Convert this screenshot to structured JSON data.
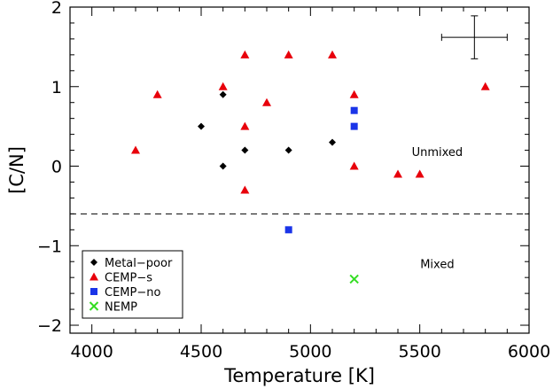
{
  "chart_data": {
    "type": "scatter",
    "xlabel": "Temperature [K]",
    "ylabel": "[C/N]",
    "xlim": [
      3900,
      6000
    ],
    "ylim": [
      -2.1,
      2.0
    ],
    "xticks": [
      4000,
      4500,
      5000,
      5500,
      6000
    ],
    "yticks": [
      -2,
      -1,
      0,
      1,
      2
    ],
    "x_minor_step": 100,
    "y_minor_step": 0.2,
    "grid": false,
    "legend_position": "bottom-left",
    "threshold": {
      "y": -0.6,
      "style": "dashed"
    },
    "annotations": [
      {
        "text": "Unmixed",
        "x": 5580,
        "y": 0.13
      },
      {
        "text": "Mixed",
        "x": 5580,
        "y": -1.28
      }
    ],
    "error_bar": {
      "x": 5750,
      "y": 1.62,
      "dx": 150,
      "dy": 0.27
    },
    "series": [
      {
        "name": "Metal−poor",
        "marker": "diamond",
        "color": "#000000",
        "points": [
          [
            4500,
            0.5
          ],
          [
            4600,
            0.9
          ],
          [
            4600,
            0.0
          ],
          [
            4700,
            0.2
          ],
          [
            4900,
            0.2
          ],
          [
            5100,
            0.3
          ]
        ]
      },
      {
        "name": "CEMP−s",
        "marker": "triangle",
        "color": "#e8000b",
        "points": [
          [
            4200,
            0.2
          ],
          [
            4300,
            0.9
          ],
          [
            4600,
            1.0
          ],
          [
            4700,
            1.4
          ],
          [
            4700,
            0.5
          ],
          [
            4700,
            -0.3
          ],
          [
            4800,
            0.8
          ],
          [
            4900,
            1.4
          ],
          [
            5100,
            1.4
          ],
          [
            5200,
            0.9
          ],
          [
            5200,
            0.0
          ],
          [
            5400,
            -0.1
          ],
          [
            5500,
            -0.1
          ],
          [
            5800,
            1.0
          ]
        ]
      },
      {
        "name": "CEMP−no",
        "marker": "square",
        "color": "#1a34e8",
        "points": [
          [
            5200,
            0.7
          ],
          [
            5200,
            0.5
          ],
          [
            4900,
            -0.8
          ]
        ]
      },
      {
        "name": "NEMP",
        "marker": "x",
        "color": "#33dd22",
        "points": [
          [
            5200,
            -1.42
          ]
        ]
      }
    ]
  }
}
